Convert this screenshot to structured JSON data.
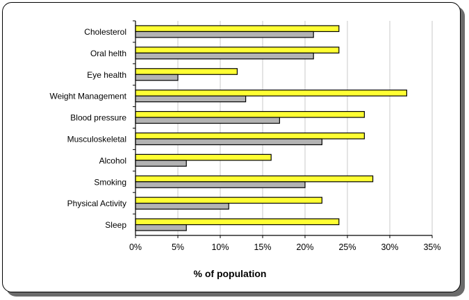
{
  "chart_data": {
    "type": "bar",
    "orientation": "horizontal",
    "categories": [
      "Cholesterol",
      "Oral helth",
      "Eye health",
      "Weight Management",
      "Blood pressure",
      "Musculoskeletal",
      "Alcohol",
      "Smoking",
      "Physical Activity",
      "Sleep"
    ],
    "series": [
      {
        "color": "#ffff33",
        "values": [
          24,
          24,
          12,
          32,
          27,
          27,
          16,
          28,
          22,
          24
        ]
      },
      {
        "color": "#b3b3b3",
        "values": [
          21,
          21,
          5,
          13,
          17,
          22,
          6,
          20,
          11,
          6
        ]
      }
    ],
    "xlabel": "% of population",
    "xlim": [
      0,
      35
    ],
    "xticks": [
      0,
      5,
      10,
      15,
      20,
      25,
      30,
      35
    ],
    "xtick_labels": [
      "0%",
      "5%",
      "10%",
      "15%",
      "20%",
      "25%",
      "30%",
      "35%"
    ],
    "grid": "vertical",
    "legend": "none"
  }
}
